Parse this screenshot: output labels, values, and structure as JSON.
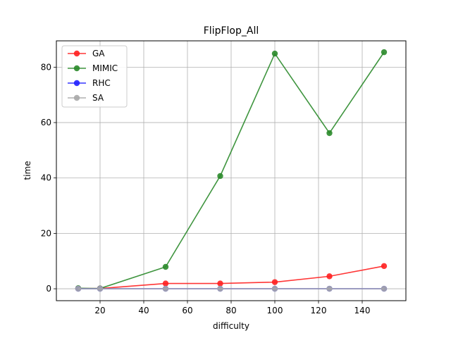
{
  "chart_data": {
    "type": "line",
    "title": "FlipFlop_All",
    "xlabel": "difficulty",
    "ylabel": "time",
    "x": [
      10,
      20,
      50,
      75,
      100,
      125,
      150
    ],
    "xlim": [
      0,
      160
    ],
    "ylim": [
      -4.3,
      89.5
    ],
    "xticks": [
      20,
      40,
      60,
      80,
      100,
      120,
      140
    ],
    "yticks": [
      0,
      20,
      40,
      60,
      80
    ],
    "grid": true,
    "legend_position": "top-left",
    "series": [
      {
        "name": "GA",
        "color": "#ff2020",
        "values": [
          0.1,
          0.1,
          1.9,
          1.9,
          2.4,
          4.5,
          8.2
        ]
      },
      {
        "name": "MIMIC",
        "color": "#2a8a2a",
        "values": [
          0.2,
          0.1,
          7.9,
          40.7,
          84.9,
          56.2,
          85.4
        ]
      },
      {
        "name": "RHC",
        "color": "#2020ff",
        "values": [
          0.0,
          0.0,
          0.0,
          0.0,
          0.0,
          0.0,
          0.0
        ]
      },
      {
        "name": "SA",
        "color": "#a9a9a9",
        "values": [
          0.0,
          0.0,
          0.0,
          0.0,
          0.0,
          0.0,
          0.0
        ]
      }
    ]
  }
}
